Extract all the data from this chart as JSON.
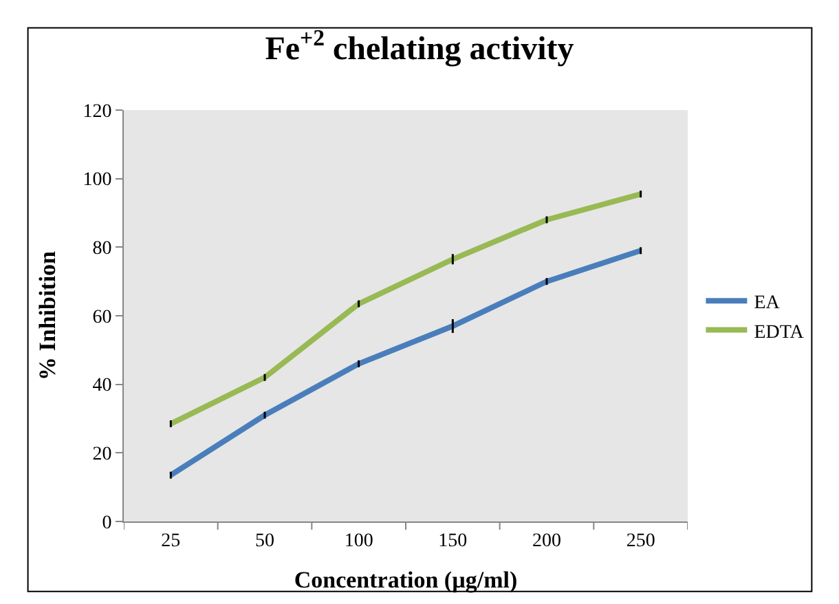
{
  "chart_data": {
    "type": "line",
    "title": "Fe$^{+2}$ chelating activity",
    "xlabel": "Concentration (µg/ml)",
    "ylabel": "% Inhibition",
    "categories": [
      "25",
      "50",
      "100",
      "150",
      "200",
      "250"
    ],
    "series": [
      {
        "name": "EA",
        "color": "#4a7ebb",
        "values": [
          13.5,
          31,
          46,
          57,
          70,
          79
        ],
        "errors": [
          1,
          1,
          1,
          2,
          1,
          1
        ]
      },
      {
        "name": "EDTA",
        "color": "#98b954",
        "values": [
          28.5,
          42,
          63.5,
          76.5,
          88,
          95.5
        ],
        "errors": [
          1,
          1,
          1,
          1.5,
          1,
          1
        ]
      }
    ],
    "ylim": [
      0,
      120
    ],
    "yticks": [
      0,
      20,
      40,
      60,
      80,
      100,
      120
    ],
    "grid": false,
    "legend": "right",
    "marker": "none",
    "line_style": "solid"
  }
}
